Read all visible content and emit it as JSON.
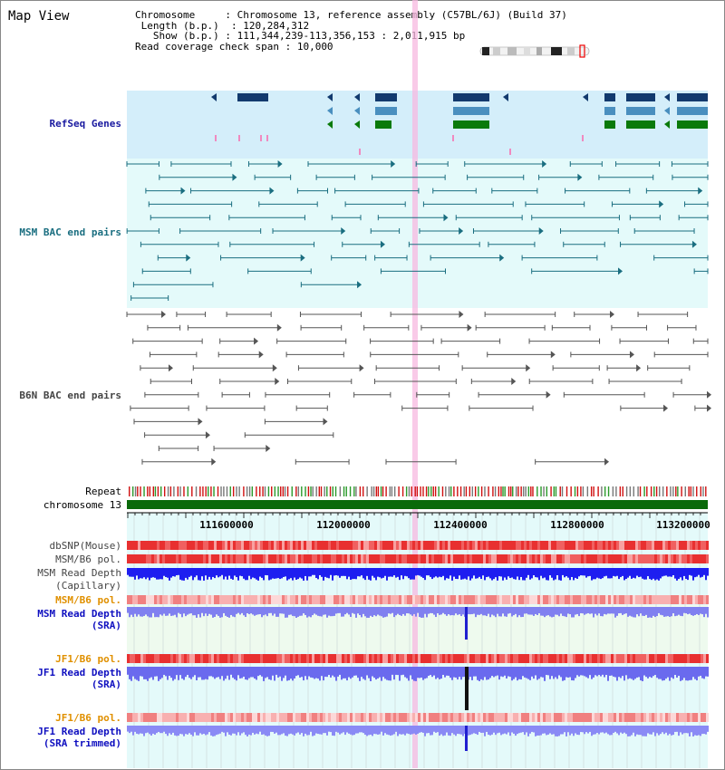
{
  "title": "Map View",
  "info": {
    "chromosome_key": "Chromosome",
    "chromosome_val": ": Chromosome 13, reference assembly (C57BL/6J) (Build 37)",
    "length_key": "Length (b.p.)",
    "length_val": ": 120,284,312",
    "show_key": "Show (b.p.)",
    "show_val": ": 111,344,239-113,356,153 : 2,011,915 bp",
    "span_key": "Read coverage check span",
    "span_val": ": 10,000"
  },
  "tracks": {
    "refseq": "RefSeq Genes",
    "msm_bac": "MSM BAC end pairs",
    "b6n_bac": "B6N BAC end pairs",
    "repeat": "Repeat",
    "chromosome": "chromosome 13",
    "dbsnp": "dbSNP(Mouse)",
    "msm_b6_pol": "MSM/B6 pol.",
    "msm_depth_cap_1": "MSM Read Depth",
    "msm_depth_cap_2": "(Capillary)",
    "msm_b6_pol_2": "MSM/B6 pol.",
    "msm_depth_sra_1": "MSM Read Depth",
    "msm_depth_sra_2": "(SRA)",
    "jf1_b6_pol": "JF1/B6 pol.",
    "jf1_depth_sra_1": "JF1 Read Depth",
    "jf1_depth_sra_2": "(SRA)",
    "jf1_b6_pol_2": "JF1/B6 pol.",
    "jf1_depth_trim_1": "JF1 Read Depth",
    "jf1_depth_trim_2": "(SRA trimmed)"
  },
  "axis": {
    "ticks": [
      "111600000",
      "112000000",
      "112400000",
      "112800000",
      "113200000"
    ]
  },
  "colors": {
    "refseq_bg": "#d4eefa",
    "bac_bg": "#e4fafa",
    "gene_navy": "#123a6e",
    "gene_mid": "#4a8fbf",
    "gene_green": "#0a7a0a",
    "bac_teal": "#1a6e80",
    "bac_gray": "#555555",
    "highlight": "#f7b8e0"
  }
}
